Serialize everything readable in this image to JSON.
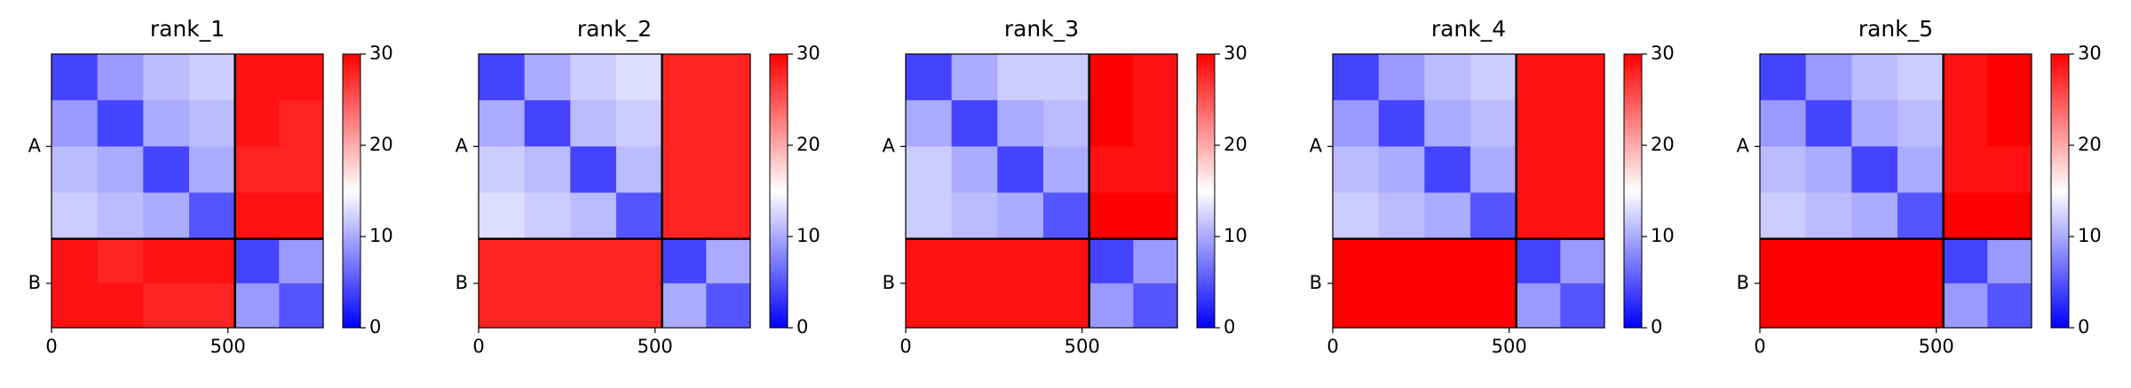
{
  "chart_data": [
    {
      "type": "heatmap",
      "title": "rank_1",
      "colormap": "bwr",
      "x_bins": [
        0,
        130,
        260,
        390,
        520,
        645,
        770
      ],
      "y_bins": [
        0,
        130,
        260,
        390,
        520,
        645,
        770
      ],
      "values": [
        [
          4,
          9,
          11,
          12,
          29,
          29
        ],
        [
          9,
          4,
          10,
          11,
          29,
          28
        ],
        [
          11,
          10,
          4,
          10,
          28,
          28
        ],
        [
          12,
          11,
          10,
          5,
          29,
          29
        ],
        [
          29,
          28,
          29,
          29,
          4,
          9
        ],
        [
          29,
          29,
          28,
          28,
          9,
          5
        ]
      ],
      "xlim": [
        0,
        770
      ],
      "xticks": [
        0,
        500
      ],
      "ylim": [
        770,
        0
      ],
      "yticks": [
        {
          "value": 260,
          "label": "A"
        },
        {
          "value": 645,
          "label": "B"
        }
      ],
      "chain_breaks": [
        520
      ],
      "zlim": [
        0,
        30
      ],
      "zticks": [
        0,
        10,
        20,
        30
      ]
    },
    {
      "type": "heatmap",
      "title": "rank_2",
      "colormap": "bwr",
      "x_bins": [
        0,
        130,
        260,
        390,
        520,
        645,
        770
      ],
      "y_bins": [
        0,
        130,
        260,
        390,
        520,
        645,
        770
      ],
      "values": [
        [
          4,
          10,
          12,
          13,
          28,
          28
        ],
        [
          10,
          4,
          11,
          12,
          28,
          28
        ],
        [
          12,
          11,
          4,
          11,
          28,
          28
        ],
        [
          13,
          12,
          11,
          5,
          28,
          28
        ],
        [
          28,
          28,
          28,
          28,
          4,
          10
        ],
        [
          28,
          28,
          28,
          28,
          10,
          5
        ]
      ],
      "xlim": [
        0,
        770
      ],
      "xticks": [
        0,
        500
      ],
      "ylim": [
        770,
        0
      ],
      "yticks": [
        {
          "value": 260,
          "label": "A"
        },
        {
          "value": 645,
          "label": "B"
        }
      ],
      "chain_breaks": [
        520
      ],
      "zlim": [
        0,
        30
      ],
      "zticks": [
        0,
        10,
        20,
        30
      ]
    },
    {
      "type": "heatmap",
      "title": "rank_3",
      "colormap": "bwr",
      "x_bins": [
        0,
        130,
        260,
        390,
        520,
        645,
        770
      ],
      "y_bins": [
        0,
        130,
        260,
        390,
        520,
        645,
        770
      ],
      "values": [
        [
          4,
          10,
          12,
          12,
          30,
          29
        ],
        [
          10,
          4,
          10,
          11,
          30,
          29
        ],
        [
          12,
          10,
          4,
          10,
          29,
          29
        ],
        [
          12,
          11,
          10,
          5,
          30,
          30
        ],
        [
          29,
          29,
          29,
          29,
          4,
          9
        ],
        [
          29,
          29,
          29,
          29,
          9,
          5
        ]
      ],
      "xlim": [
        0,
        770
      ],
      "xticks": [
        0,
        500
      ],
      "ylim": [
        770,
        0
      ],
      "yticks": [
        {
          "value": 260,
          "label": "A"
        },
        {
          "value": 645,
          "label": "B"
        }
      ],
      "chain_breaks": [
        520
      ],
      "zlim": [
        0,
        30
      ],
      "zticks": [
        0,
        10,
        20,
        30
      ]
    },
    {
      "type": "heatmap",
      "title": "rank_4",
      "colormap": "bwr",
      "x_bins": [
        0,
        130,
        260,
        390,
        520,
        645,
        770
      ],
      "y_bins": [
        0,
        130,
        260,
        390,
        520,
        645,
        770
      ],
      "values": [
        [
          4,
          9,
          11,
          12,
          29,
          29
        ],
        [
          9,
          4,
          10,
          11,
          29,
          29
        ],
        [
          11,
          10,
          4,
          10,
          29,
          29
        ],
        [
          12,
          11,
          10,
          5,
          29,
          29
        ],
        [
          30,
          30,
          30,
          30,
          4,
          9
        ],
        [
          30,
          30,
          30,
          30,
          9,
          5
        ]
      ],
      "xlim": [
        0,
        770
      ],
      "xticks": [
        0,
        500
      ],
      "ylim": [
        770,
        0
      ],
      "yticks": [
        {
          "value": 260,
          "label": "A"
        },
        {
          "value": 645,
          "label": "B"
        }
      ],
      "chain_breaks": [
        520
      ],
      "zlim": [
        0,
        30
      ],
      "zticks": [
        0,
        10,
        20,
        30
      ]
    },
    {
      "type": "heatmap",
      "title": "rank_5",
      "colormap": "bwr",
      "x_bins": [
        0,
        130,
        260,
        390,
        520,
        645,
        770
      ],
      "y_bins": [
        0,
        130,
        260,
        390,
        520,
        645,
        770
      ],
      "values": [
        [
          4,
          9,
          11,
          12,
          29,
          30
        ],
        [
          9,
          4,
          10,
          11,
          29,
          30
        ],
        [
          11,
          10,
          4,
          10,
          29,
          29
        ],
        [
          12,
          11,
          10,
          5,
          30,
          30
        ],
        [
          30,
          30,
          30,
          30,
          4,
          9
        ],
        [
          30,
          30,
          30,
          30,
          9,
          5
        ]
      ],
      "xlim": [
        0,
        770
      ],
      "xticks": [
        0,
        500
      ],
      "ylim": [
        770,
        0
      ],
      "yticks": [
        {
          "value": 260,
          "label": "A"
        },
        {
          "value": 645,
          "label": "B"
        }
      ],
      "chain_breaks": [
        520
      ],
      "zlim": [
        0,
        30
      ],
      "zticks": [
        0,
        10,
        20,
        30
      ]
    }
  ]
}
